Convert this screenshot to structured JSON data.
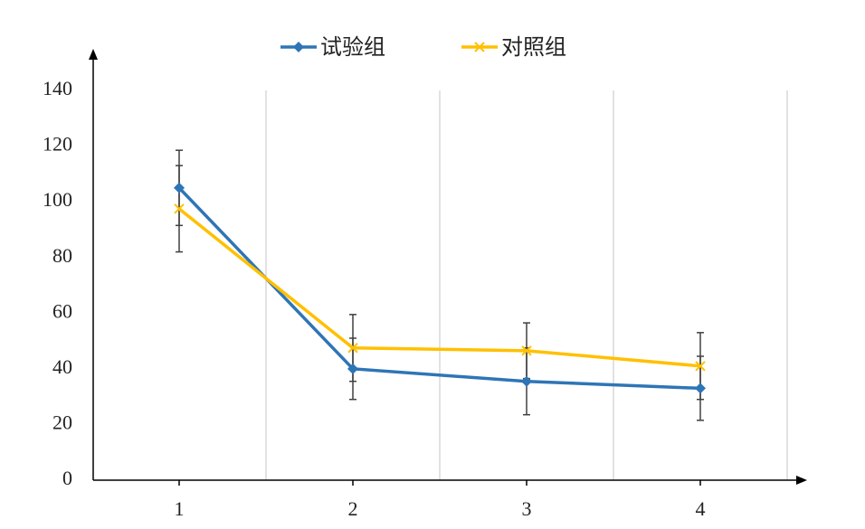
{
  "chart_data": {
    "type": "line",
    "categories": [
      "1",
      "2",
      "3",
      "4"
    ],
    "series": [
      {
        "name": "试验组",
        "color": "#2e75b6",
        "marker": "diamond",
        "values": [
          105,
          40,
          35.5,
          33
        ],
        "errors": [
          13.5,
          11,
          12,
          11.5
        ]
      },
      {
        "name": "对照组",
        "color": "#ffc000",
        "marker": "x",
        "values": [
          97.5,
          47.5,
          46.5,
          41
        ],
        "errors": [
          15.5,
          12,
          10,
          12
        ]
      }
    ],
    "ylim": [
      0,
      140
    ],
    "yticks": [
      0,
      20,
      40,
      60,
      80,
      100,
      120,
      140
    ],
    "grid": true,
    "legend": "top",
    "error_color": "#404040"
  }
}
